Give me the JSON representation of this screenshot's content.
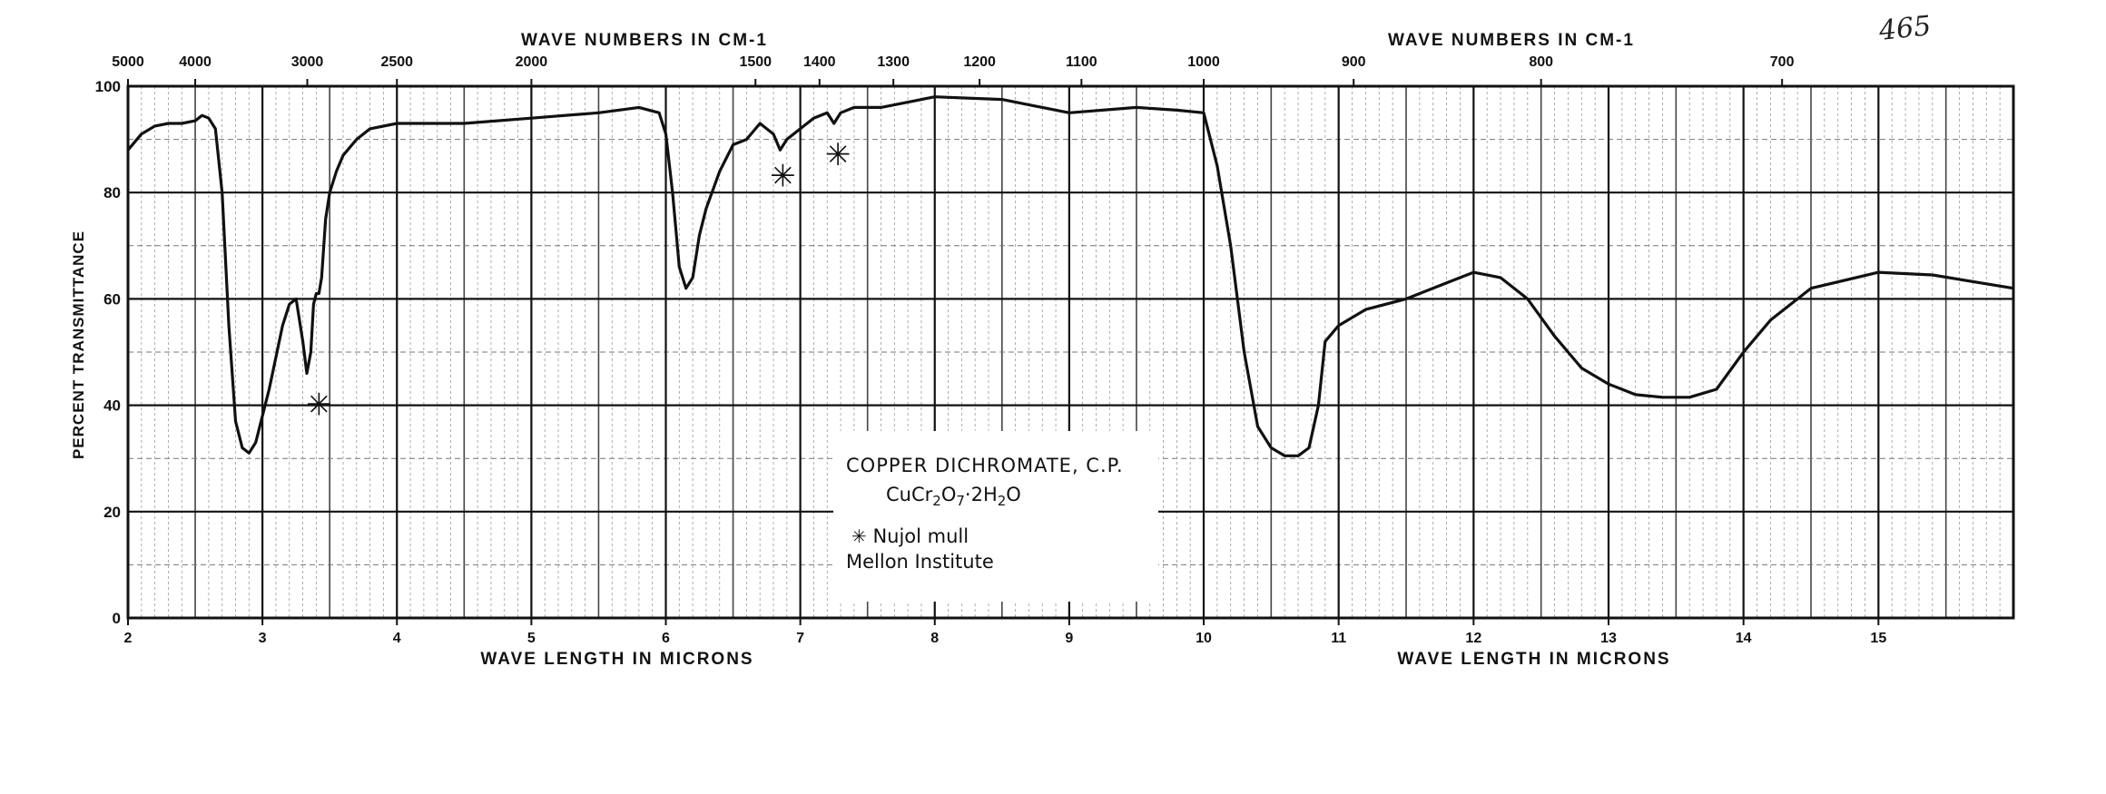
{
  "page_number": "465",
  "chart_data": {
    "type": "line",
    "title": "COPPER DICHROMATE, C.P.",
    "formula": "CuCr2O7·2H2O",
    "formula_parts": {
      "a": "CuCr",
      "s1": "2",
      "b": "O",
      "s2": "7",
      "c": "·2H",
      "s3": "2",
      "d": "O"
    },
    "legend_note": "Nujol mull",
    "source": "Mellon Institute",
    "marker_symbol": "✳",
    "xlabel": "WAVE LENGTH IN MICRONS",
    "xlabel_top": "WAVE NUMBERS IN CM-1",
    "ylabel": "PERCENT TRANSMITTANCE",
    "xlim": [
      2,
      16
    ],
    "ylim": [
      0,
      100
    ],
    "grid": true,
    "x_ticks": [
      "2",
      "3",
      "4",
      "5",
      "6",
      "7",
      "8",
      "9",
      "10",
      "11",
      "12",
      "13",
      "14",
      "15"
    ],
    "y_ticks": [
      "0",
      "20",
      "40",
      "60",
      "80",
      "100"
    ],
    "top_ticks": [
      "5000",
      "4000",
      "3000",
      "2500",
      "2000",
      "1500",
      "1400",
      "1300",
      "1200",
      "1100",
      "1000",
      "900",
      "800",
      "700"
    ],
    "series": [
      {
        "x": [
          2.0,
          2.1,
          2.2,
          2.3,
          2.4,
          2.5,
          2.55,
          2.6,
          2.65,
          2.7,
          2.75,
          2.8,
          2.85,
          2.9,
          2.95,
          3.0,
          3.05,
          3.1,
          3.15,
          3.2,
          3.25,
          3.3,
          3.33,
          3.36,
          3.38,
          3.4,
          3.42,
          3.44,
          3.47,
          3.5,
          3.55,
          3.6,
          3.7,
          3.8,
          4.0,
          4.5,
          5.0,
          5.5,
          5.8,
          5.95,
          6.0,
          6.05,
          6.1,
          6.15,
          6.2,
          6.25,
          6.3,
          6.4,
          6.5,
          6.6,
          6.7,
          6.8,
          6.85,
          6.9,
          7.0,
          7.1,
          7.2,
          7.25,
          7.3,
          7.4,
          7.6,
          8.0,
          8.5,
          9.0,
          9.5,
          9.8,
          10.0,
          10.1,
          10.2,
          10.3,
          10.4,
          10.5,
          10.6,
          10.7,
          10.78,
          10.85,
          10.9,
          11.0,
          11.2,
          11.5,
          11.8,
          12.0,
          12.2,
          12.4,
          12.6,
          12.8,
          13.0,
          13.2,
          13.4,
          13.6,
          13.8,
          14.0,
          14.2,
          14.5,
          15.0,
          15.4,
          16.0
        ],
        "y": [
          88,
          91,
          92.5,
          93,
          93,
          93.5,
          94.5,
          94,
          92,
          80,
          55,
          37,
          32,
          31,
          33,
          38,
          43,
          49,
          55,
          59,
          60,
          52,
          46,
          50,
          59,
          61,
          61,
          64,
          75,
          80,
          84,
          87,
          90,
          92,
          93,
          93,
          94,
          95,
          96,
          95,
          91,
          80,
          66,
          62,
          64,
          72,
          77,
          84,
          89,
          90,
          93,
          91,
          88,
          90,
          92,
          94,
          95,
          93,
          95,
          96,
          96,
          98,
          97.5,
          95,
          96,
          95.5,
          95,
          85,
          70,
          50,
          36,
          32,
          30.5,
          30.5,
          32,
          40,
          52,
          55,
          58,
          60,
          63,
          65,
          64,
          60,
          53,
          47,
          44,
          42,
          41.5,
          41.5,
          43,
          50,
          56,
          62,
          65,
          64.5,
          62
        ]
      }
    ],
    "markers": [
      {
        "x": 3.42,
        "y": 40
      },
      {
        "x": 6.87,
        "y": 83
      },
      {
        "x": 7.28,
        "y": 87
      }
    ]
  }
}
